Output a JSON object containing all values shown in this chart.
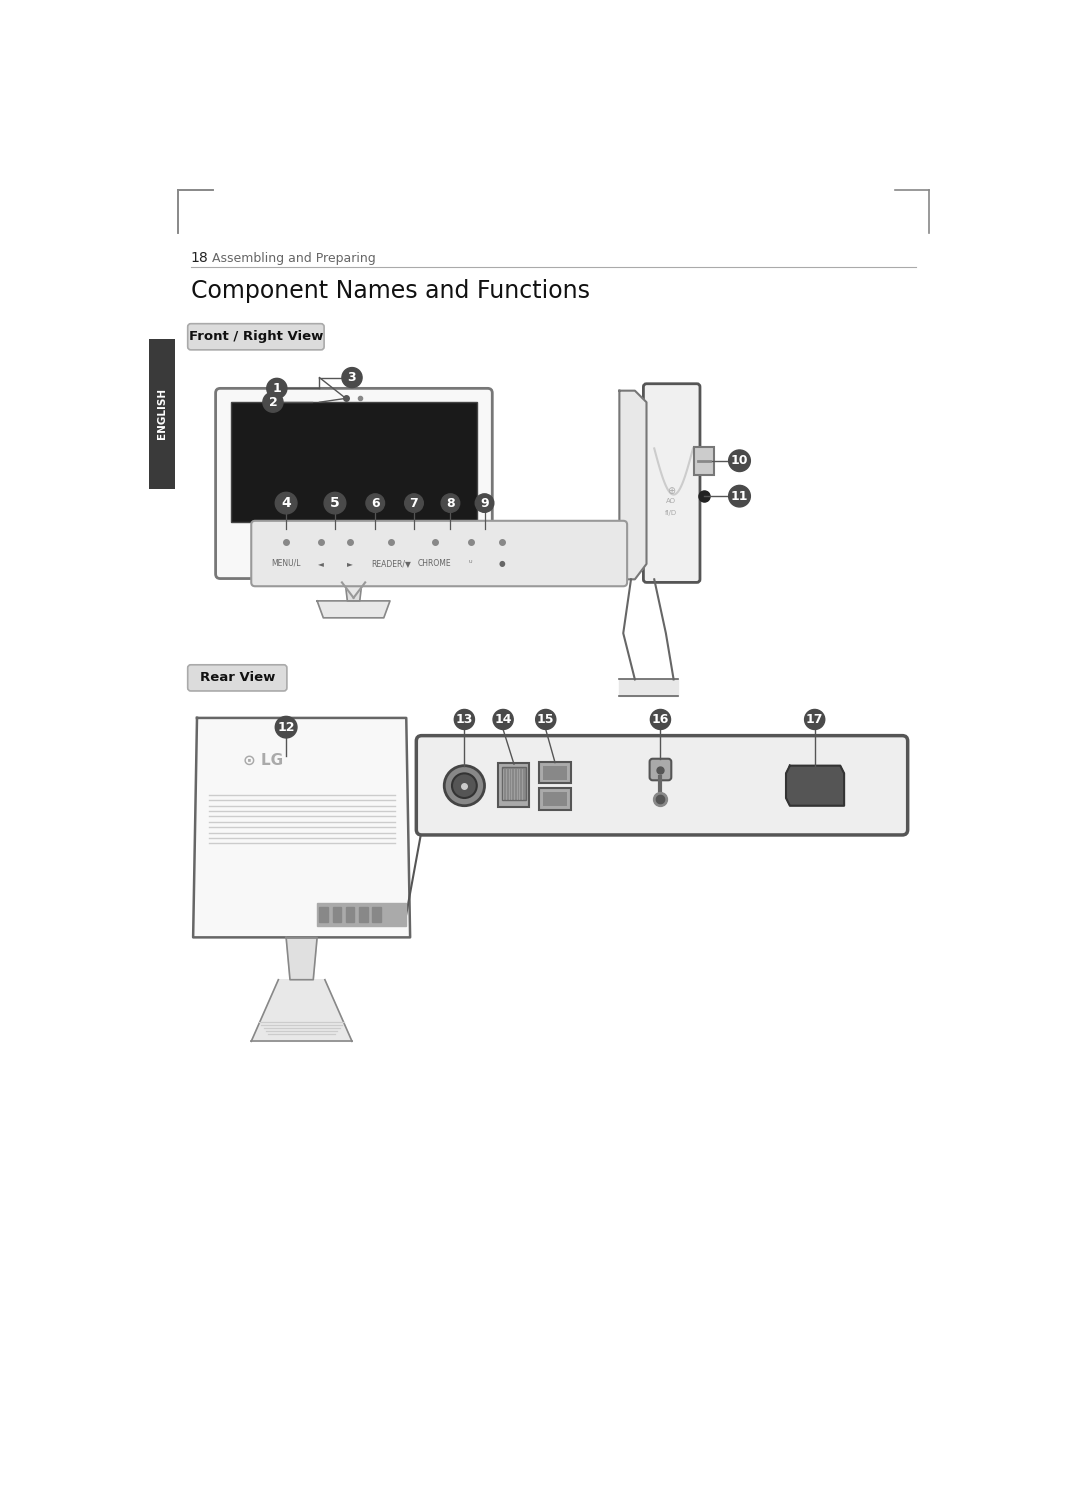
{
  "page_number": "18",
  "page_header": "Assembling and Preparing",
  "title": "Component Names and Functions",
  "section1": "Front / Right View",
  "section2": "Rear View",
  "bg_color": "#ffffff",
  "sidebar_color": "#3a3a3a",
  "sidebar_text": "ENGLISH",
  "sidebar_text_color": "#ffffff",
  "label_bg_color": "#4a4a4a",
  "label_text_color": "#ffffff",
  "section_box_bg": "#dcdcdc",
  "section_box_border": "#aaaaaa",
  "monitor_face_color": "#f5f5f5",
  "monitor_border_color": "#555555",
  "screen_color": "#111111",
  "ctrl_panel_color": "#e8e8e8",
  "ctrl_panel_border": "#999999",
  "port_panel_color": "#eeeeee",
  "port_panel_border": "#555555"
}
